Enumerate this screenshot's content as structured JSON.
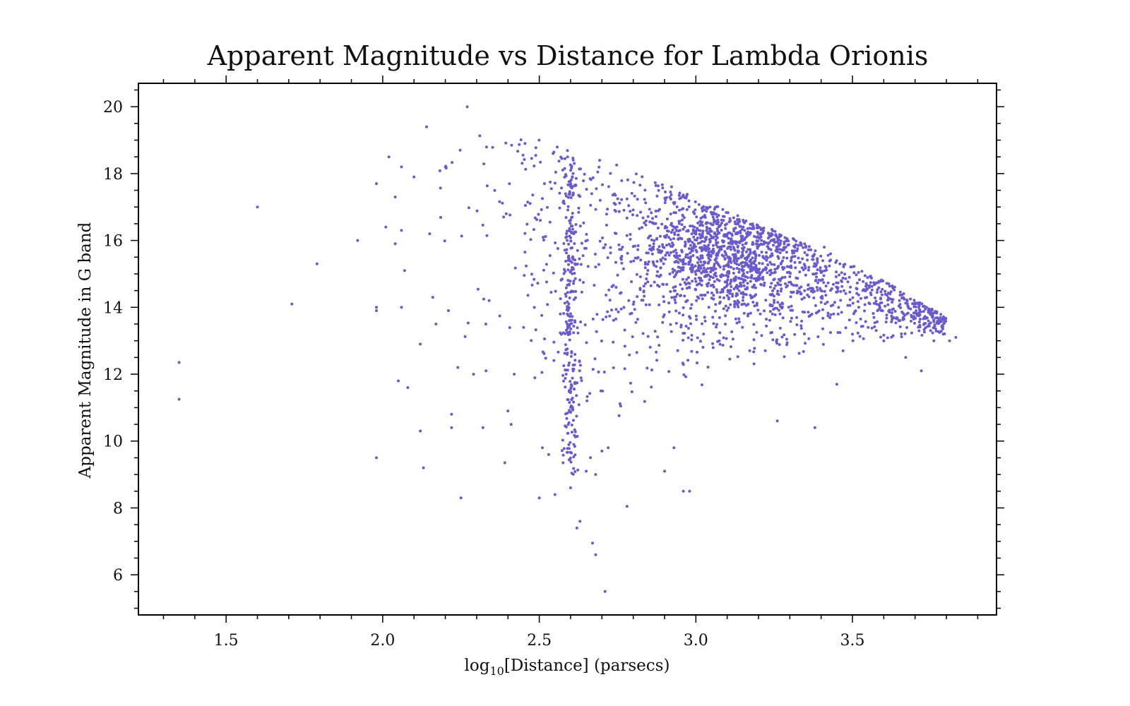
{
  "chart_data": {
    "type": "scatter",
    "title": "Apparent Magnitude vs Distance for Lambda Orionis",
    "xlabel": {
      "prefix": "log",
      "subscript": "10",
      "suffix": "[Distance] (parsecs)"
    },
    "ylabel": "Apparent Magnitude in G band",
    "xlim": [
      1.22,
      3.96
    ],
    "ylim": [
      4.8,
      20.7
    ],
    "xticks": [
      "1.5",
      "2.0",
      "2.5",
      "3.0",
      "3.5"
    ],
    "yticks": [
      "6",
      "8",
      "10",
      "12",
      "14",
      "16",
      "18",
      "20"
    ],
    "grid": false,
    "marker_color": "#6a5acd",
    "series": [
      {
        "name": "",
        "points": [
          [
            1.35,
            12.35
          ],
          [
            1.35,
            11.25
          ],
          [
            1.6,
            17.0
          ],
          [
            1.71,
            14.1
          ],
          [
            1.79,
            15.3
          ],
          [
            1.92,
            16.0
          ],
          [
            1.98,
            17.7
          ],
          [
            1.98,
            14.0
          ],
          [
            1.98,
            13.9
          ],
          [
            1.98,
            9.5
          ],
          [
            2.01,
            16.4
          ],
          [
            2.02,
            18.5
          ],
          [
            2.04,
            17.3
          ],
          [
            2.04,
            15.9
          ],
          [
            2.05,
            11.8
          ],
          [
            2.06,
            16.3
          ],
          [
            2.06,
            18.2
          ],
          [
            2.06,
            14.0
          ],
          [
            2.07,
            15.1
          ],
          [
            2.08,
            11.6
          ],
          [
            2.1,
            17.9
          ],
          [
            2.12,
            12.9
          ],
          [
            2.12,
            10.3
          ],
          [
            2.13,
            9.2
          ],
          [
            2.14,
            19.4
          ],
          [
            2.15,
            16.2
          ],
          [
            2.16,
            14.3
          ],
          [
            2.17,
            13.5
          ],
          [
            2.2,
            18.2
          ],
          [
            2.21,
            13.9
          ],
          [
            2.22,
            10.8
          ],
          [
            2.22,
            10.4
          ],
          [
            2.24,
            12.2
          ],
          [
            2.25,
            8.3
          ],
          [
            2.27,
            20.0
          ],
          [
            2.29,
            12.0
          ],
          [
            2.32,
            10.4
          ],
          [
            2.33,
            12.1
          ],
          [
            2.34,
            14.2
          ],
          [
            2.39,
            9.35
          ],
          [
            2.4,
            10.9
          ],
          [
            2.41,
            10.5
          ],
          [
            2.42,
            12.0
          ],
          [
            2.45,
            13.4
          ],
          [
            2.5,
            8.3
          ],
          [
            2.51,
            9.8
          ],
          [
            2.53,
            9.6
          ],
          [
            2.55,
            8.4
          ],
          [
            2.6,
            8.6
          ],
          [
            2.61,
            9.9
          ],
          [
            2.62,
            7.4
          ],
          [
            2.63,
            7.6
          ],
          [
            2.65,
            9.1
          ],
          [
            2.67,
            6.95
          ],
          [
            2.68,
            6.6
          ],
          [
            2.68,
            9.0
          ],
          [
            2.7,
            9.7
          ],
          [
            2.71,
            5.5
          ],
          [
            2.72,
            9.8
          ],
          [
            2.78,
            8.05
          ],
          [
            2.9,
            9.1
          ],
          [
            2.93,
            9.8
          ],
          [
            2.96,
            8.5
          ],
          [
            2.98,
            8.5
          ],
          [
            3.26,
            10.6
          ],
          [
            3.38,
            10.4
          ],
          [
            3.45,
            11.7
          ],
          [
            3.6,
            13.0
          ],
          [
            3.67,
            12.5
          ],
          [
            3.72,
            12.1
          ],
          [
            3.76,
            13.0
          ],
          [
            3.79,
            13.2
          ],
          [
            3.81,
            13.0
          ],
          [
            3.83,
            13.1
          ],
          [
            3.78,
            13.6
          ],
          [
            3.73,
            13.7
          ],
          [
            3.7,
            14.1
          ],
          [
            3.65,
            14.2
          ],
          [
            3.62,
            14.4
          ],
          [
            3.58,
            13.9
          ],
          [
            3.55,
            13.4
          ],
          [
            3.52,
            14.0
          ],
          [
            3.49,
            14.9
          ],
          [
            3.46,
            15.3
          ],
          [
            3.43,
            15.6
          ],
          [
            3.41,
            15.8
          ],
          [
            3.5,
            13.2
          ],
          [
            3.47,
            12.7
          ],
          [
            3.44,
            13.8
          ]
        ]
      }
    ],
    "generated_cloud": {
      "count": 2400,
      "x_range": [
        2.15,
        3.8
      ],
      "upper_edge": [
        [
          2.2,
          19.4
        ],
        [
          2.5,
          19.0
        ],
        [
          2.8,
          18.1
        ],
        [
          3.0,
          17.3
        ],
        [
          3.2,
          16.5
        ],
        [
          3.3,
          16.1
        ],
        [
          3.4,
          15.7
        ],
        [
          3.6,
          14.8
        ],
        [
          3.8,
          13.7
        ]
      ],
      "lower_edge": [
        [
          2.2,
          13.0
        ],
        [
          2.5,
          10.5
        ],
        [
          2.65,
          9.0
        ],
        [
          2.8,
          10.5
        ],
        [
          3.0,
          11.5
        ],
        [
          3.2,
          12.0
        ],
        [
          3.4,
          12.5
        ],
        [
          3.6,
          13.0
        ],
        [
          3.8,
          13.2
        ]
      ],
      "dense_center": [
        3.12,
        15.6
      ],
      "vertical_band_x": 2.6
    }
  }
}
